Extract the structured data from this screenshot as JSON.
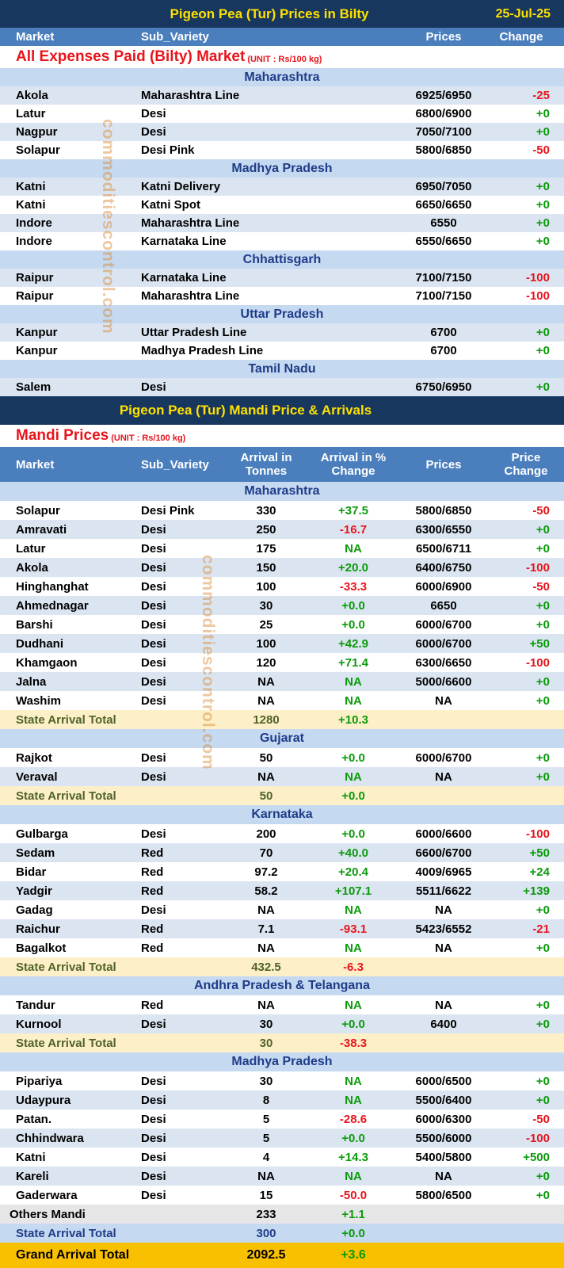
{
  "watermark": "commoditiescontrol.com",
  "bilty": {
    "title": "Pigeon Pea (Tur) Prices in Bilty",
    "date": "25-Jul-25",
    "columns": [
      "Market",
      "Sub_Variety",
      "Prices",
      "Change"
    ],
    "section_title": "All Expenses Paid (Bilty) Market",
    "unit": "(UNIT : Rs/100 kg)",
    "groups": [
      {
        "state": "Maharashtra",
        "rows": [
          [
            "Akola",
            "Maharashtra Line",
            "6925/6950",
            "-25"
          ],
          [
            "Latur",
            "Desi",
            "6800/6900",
            "+0"
          ],
          [
            "Nagpur",
            "Desi",
            "7050/7100",
            "+0"
          ],
          [
            "Solapur",
            "Desi Pink",
            "5800/6850",
            "-50"
          ]
        ]
      },
      {
        "state": "Madhya Pradesh",
        "rows": [
          [
            "Katni",
            "Katni Delivery",
            "6950/7050",
            "+0"
          ],
          [
            "Katni",
            "Katni Spot",
            "6650/6650",
            "+0"
          ],
          [
            "Indore",
            "Maharashtra Line",
            "6550",
            "+0"
          ],
          [
            "Indore",
            "Karnataka Line",
            "6550/6650",
            "+0"
          ]
        ]
      },
      {
        "state": "Chhattisgarh",
        "rows": [
          [
            "Raipur",
            "Karnataka Line",
            "7100/7150",
            "-100"
          ],
          [
            "Raipur",
            "Maharashtra Line",
            "7100/7150",
            "-100"
          ]
        ]
      },
      {
        "state": "Uttar Pradesh",
        "rows": [
          [
            "Kanpur",
            "Uttar Pradesh Line",
            "6700",
            "+0"
          ],
          [
            "Kanpur",
            "Madhya Pradesh Line",
            "6700",
            "+0"
          ]
        ]
      },
      {
        "state": "Tamil Nadu",
        "rows": [
          [
            "Salem",
            "Desi",
            "6750/6950",
            "+0"
          ]
        ]
      }
    ]
  },
  "mandi": {
    "title": "Pigeon Pea (Tur) Mandi Price & Arrivals",
    "section_title": "Mandi Prices",
    "unit": "(UNIT : Rs/100 kg)",
    "columns": [
      "Market",
      "Sub_Variety",
      "Arrival in Tonnes",
      "Arrival  in % Change",
      "Prices",
      "Price Change"
    ],
    "groups": [
      {
        "state": "Maharashtra",
        "rows": [
          [
            "Solapur",
            "Desi Pink",
            "330",
            "+37.5",
            "5800/6850",
            "-50"
          ],
          [
            "Amravati",
            "Desi",
            "250",
            "-16.7",
            "6300/6550",
            "+0"
          ],
          [
            "Latur",
            "Desi",
            "175",
            "NA",
            "6500/6711",
            "+0"
          ],
          [
            "Akola",
            "Desi",
            "150",
            "+20.0",
            "6400/6750",
            "-100"
          ],
          [
            "Hinghanghat",
            "Desi",
            "100",
            "-33.3",
            "6000/6900",
            "-50"
          ],
          [
            "Ahmednagar",
            "Desi",
            "30",
            "+0.0",
            "6650",
            "+0"
          ],
          [
            "Barshi",
            "Desi",
            "25",
            "+0.0",
            "6000/6700",
            "+0"
          ],
          [
            "Dudhani",
            "Desi",
            "100",
            "+42.9",
            "6000/6700",
            "+50"
          ],
          [
            "Khamgaon",
            "Desi",
            "120",
            "+71.4",
            "6300/6650",
            "-100"
          ],
          [
            "Jalna",
            "Desi",
            "NA",
            "NA",
            "5000/6600",
            "+0"
          ],
          [
            "Washim",
            "Desi",
            "NA",
            "NA",
            "NA",
            "+0"
          ]
        ],
        "total": [
          "State Arrival Total",
          "1280",
          "+10.3"
        ]
      },
      {
        "state": "Gujarat",
        "rows": [
          [
            "Rajkot",
            "Desi",
            "50",
            "+0.0",
            "6000/6700",
            "+0"
          ],
          [
            "Veraval",
            "Desi",
            "NA",
            "NA",
            "NA",
            "+0"
          ]
        ],
        "total": [
          "State Arrival Total",
          "50",
          "+0.0"
        ]
      },
      {
        "state": "Karnataka",
        "rows": [
          [
            "Gulbarga",
            "Desi",
            "200",
            "+0.0",
            "6000/6600",
            "-100"
          ],
          [
            "Sedam",
            "Red",
            "70",
            "+40.0",
            "6600/6700",
            "+50"
          ],
          [
            "Bidar",
            "Red",
            "97.2",
            "+20.4",
            "4009/6965",
            "+24"
          ],
          [
            "Yadgir",
            "Red",
            "58.2",
            "+107.1",
            "5511/6622",
            "+139"
          ],
          [
            "Gadag",
            "Desi",
            "NA",
            "NA",
            "NA",
            "+0"
          ],
          [
            "Raichur",
            "Red",
            "7.1",
            "-93.1",
            "5423/6552",
            "-21"
          ],
          [
            "Bagalkot",
            "Red",
            "NA",
            "NA",
            "NA",
            "+0"
          ]
        ],
        "total": [
          "State Arrival Total",
          "432.5",
          "-6.3"
        ]
      },
      {
        "state": "Andhra Pradesh & Telangana",
        "rows": [
          [
            "Tandur",
            "Red",
            "NA",
            "NA",
            "NA",
            "+0"
          ],
          [
            "Kurnool",
            "Desi",
            "30",
            "+0.0",
            "6400",
            "+0"
          ]
        ],
        "total": [
          "State Arrival Total",
          "30",
          "-38.3"
        ]
      },
      {
        "state": "Madhya Pradesh",
        "rows": [
          [
            "Pipariya",
            "Desi",
            "30",
            "NA",
            "6000/6500",
            "+0"
          ],
          [
            "Udaypura",
            "Desi",
            "8",
            "NA",
            "5500/6400",
            "+0"
          ],
          [
            "Patan.",
            "Desi",
            "5",
            "-28.6",
            "6000/6300",
            "-50"
          ],
          [
            "Chhindwara",
            "Desi",
            "5",
            "+0.0",
            "5500/6000",
            "-100"
          ],
          [
            "Katni",
            "Desi",
            "4",
            "+14.3",
            "5400/5800",
            "+500"
          ],
          [
            "Kareli",
            "Desi",
            "NA",
            "NA",
            "NA",
            "+0"
          ],
          [
            "Gaderwara",
            "Desi",
            "15",
            "-50.0",
            "5800/6500",
            "+0"
          ]
        ],
        "others": [
          "Others Mandi",
          "233",
          "+1.1"
        ],
        "total": [
          "State Arrival Total",
          "300",
          "+0.0"
        ]
      }
    ],
    "grand_total": [
      "Grand Arrival Total",
      "2092.5",
      "+3.6"
    ]
  }
}
